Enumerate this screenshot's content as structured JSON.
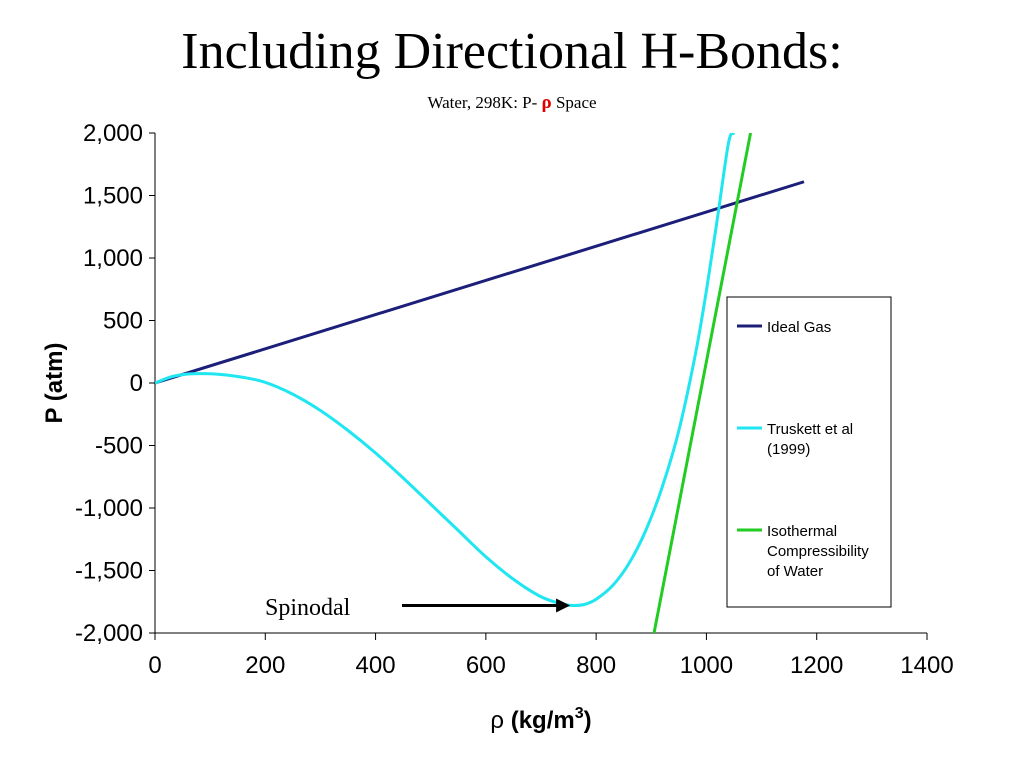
{
  "chart_data": {
    "type": "line",
    "title": "Including Directional H-Bonds:",
    "subtitle": {
      "prefix": "Water, 298K: P-",
      "symbol": "ρ",
      "suffix": "Space"
    },
    "xlabel": {
      "symbol": "ρ",
      "text": "(kg/m",
      "sup": "3",
      "close": ")"
    },
    "ylabel": "P (atm)",
    "xlim": [
      0,
      1400
    ],
    "ylim": [
      -2000,
      2000
    ],
    "x_ticks": [
      0,
      200,
      400,
      600,
      800,
      1000,
      1200,
      1400
    ],
    "y_ticks": [
      2000,
      1500,
      1000,
      500,
      0,
      -500,
      -1000,
      -1500,
      -2000
    ],
    "y_tick_labels": [
      "2,000",
      "1,500",
      "1,000",
      "500",
      "0",
      "-500",
      "-1,000",
      "-1,500",
      "-2,000"
    ],
    "grid": false,
    "legend_position": "right",
    "series": [
      {
        "name": "Ideal Gas",
        "color": "#1c1f7a",
        "x": [
          0,
          1177
        ],
        "y": [
          0,
          1610
        ]
      },
      {
        "name": "Truskett et al (1999)",
        "legend_lines": [
          "Truskett et al",
          "(1999)"
        ],
        "color": "#1fe6f0",
        "x": [
          0,
          30,
          60,
          90,
          120,
          160,
          200,
          250,
          300,
          350,
          400,
          450,
          500,
          550,
          600,
          650,
          700,
          740,
          760,
          780,
          800,
          830,
          860,
          890,
          920,
          950,
          980,
          1000,
          1020,
          1040,
          1050
        ],
        "y": [
          0,
          50,
          72,
          75,
          68,
          45,
          5,
          -90,
          -220,
          -380,
          -560,
          -760,
          -970,
          -1180,
          -1390,
          -1570,
          -1710,
          -1770,
          -1780,
          -1770,
          -1730,
          -1620,
          -1440,
          -1180,
          -830,
          -380,
          230,
          740,
          1320,
          1920,
          2000
        ]
      },
      {
        "name": "Isothermal Compressibility of Water",
        "legend_lines": [
          "Isothermal",
          "Compressibility",
          "of Water"
        ],
        "color": "#22cc22",
        "x": [
          905,
          1080
        ],
        "y": [
          -2000,
          2000
        ]
      }
    ],
    "annotations": [
      {
        "text": "Spinodal",
        "arrow_to": [
          760,
          -1780
        ]
      }
    ]
  }
}
